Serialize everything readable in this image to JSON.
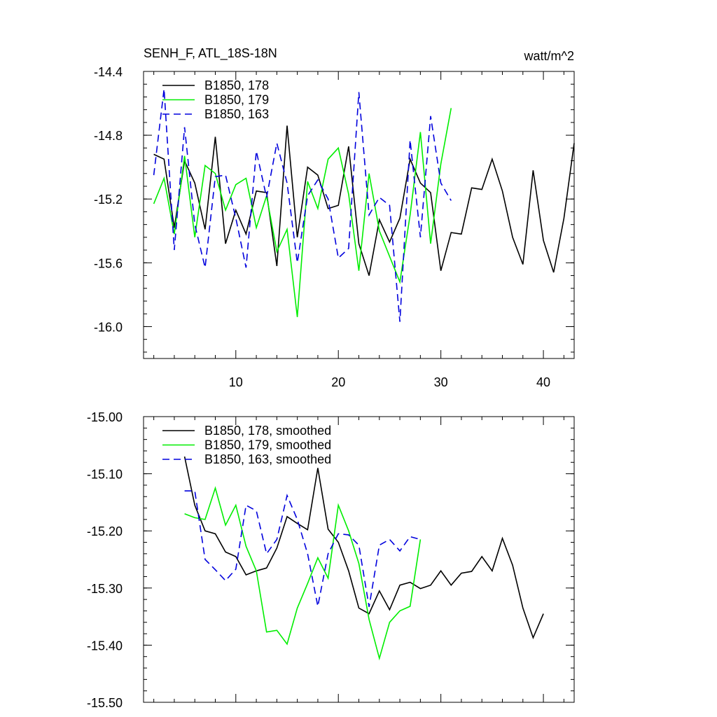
{
  "chart_data": [
    {
      "type": "line",
      "title": "SENH_F, ATL_18S-18N",
      "units": "watt/m^2",
      "xlabel": "",
      "ylabel": "",
      "xlim": [
        1,
        43
      ],
      "ylim": [
        -16.2,
        -14.4
      ],
      "xticks": [
        10,
        20,
        30,
        40
      ],
      "xtick_labels": [
        "10",
        "20",
        "30",
        "40"
      ],
      "yticks": [
        -14.4,
        -14.8,
        -15.2,
        -15.6,
        -16.0
      ],
      "ytick_labels": [
        "-14.4",
        "-14.8",
        "-15.2",
        "-15.6",
        "-16.0"
      ],
      "grid": false,
      "legend_position": "top-left",
      "series": [
        {
          "name": "B1850, 178",
          "color": "#000000",
          "dash": "solid",
          "x": [
            2,
            3,
            4,
            5,
            6,
            7,
            8,
            9,
            10,
            11,
            12,
            13,
            14,
            15,
            16,
            17,
            18,
            19,
            20,
            21,
            22,
            23,
            24,
            25,
            26,
            27,
            28,
            29,
            30,
            31,
            32,
            33,
            34,
            35,
            36,
            37,
            38,
            39,
            40,
            41,
            42,
            43
          ],
          "y": [
            -14.92,
            -14.95,
            -15.38,
            -14.96,
            -15.1,
            -15.39,
            -14.81,
            -15.48,
            -15.27,
            -15.42,
            -15.15,
            -15.16,
            -15.62,
            -14.74,
            -15.44,
            -15.0,
            -15.05,
            -15.26,
            -15.24,
            -14.87,
            -15.48,
            -15.68,
            -15.33,
            -15.47,
            -15.32,
            -14.95,
            -15.1,
            -15.16,
            -15.65,
            -15.41,
            -15.42,
            -15.13,
            -15.14,
            -14.95,
            -15.15,
            -15.44,
            -15.61,
            -15.02,
            -15.46,
            -15.66,
            -15.32,
            -14.85
          ]
        },
        {
          "name": "B1850, 179",
          "color": "#00ee00",
          "dash": "solid",
          "x": [
            2,
            3,
            4,
            5,
            6,
            7,
            8,
            9,
            10,
            11,
            12,
            13,
            14,
            15,
            16,
            17,
            18,
            19,
            20,
            21,
            22,
            23,
            24,
            25,
            26,
            27,
            28,
            29,
            30,
            31
          ],
          "y": [
            -15.23,
            -15.07,
            -15.42,
            -14.93,
            -15.44,
            -14.99,
            -15.04,
            -15.27,
            -15.11,
            -15.07,
            -15.38,
            -15.18,
            -15.53,
            -15.39,
            -15.94,
            -15.09,
            -15.26,
            -14.95,
            -14.88,
            -15.17,
            -15.65,
            -15.04,
            -15.4,
            -15.56,
            -15.72,
            -15.3,
            -14.78,
            -15.48,
            -14.98,
            -14.63
          ]
        },
        {
          "name": "B1850, 163",
          "color": "#0000dd",
          "dash": "dashed",
          "x": [
            2,
            3,
            4,
            5,
            6,
            7,
            8,
            9,
            10,
            11,
            12,
            13,
            14,
            15,
            16,
            17,
            18,
            19,
            20,
            21,
            22,
            23,
            24,
            25,
            26,
            27,
            28,
            29,
            30,
            31
          ],
          "y": [
            -15.05,
            -14.51,
            -15.52,
            -14.75,
            -15.36,
            -15.63,
            -15.06,
            -15.05,
            -15.32,
            -15.63,
            -14.9,
            -15.19,
            -14.85,
            -15.1,
            -15.6,
            -15.18,
            -15.08,
            -15.2,
            -15.57,
            -15.51,
            -14.53,
            -15.3,
            -15.19,
            -15.24,
            -15.97,
            -14.83,
            -15.44,
            -14.68,
            -15.1,
            -15.21
          ]
        }
      ]
    },
    {
      "type": "line",
      "title": "",
      "xlabel": "",
      "ylabel": "",
      "xlim": [
        1,
        43
      ],
      "ylim": [
        -15.5,
        -15.0
      ],
      "xticks": [
        10,
        20,
        30,
        40
      ],
      "xtick_labels": [],
      "yticks": [
        -15.0,
        -15.1,
        -15.2,
        -15.3,
        -15.4,
        -15.5
      ],
      "ytick_labels": [
        "-15.00",
        "-15.10",
        "-15.20",
        "-15.30",
        "-15.40",
        "-15.50"
      ],
      "grid": false,
      "legend_position": "top-left",
      "series": [
        {
          "name": "B1850, 178, smoothed",
          "color": "#000000",
          "dash": "solid",
          "x": [
            5,
            6,
            7,
            8,
            9,
            10,
            11,
            12,
            13,
            14,
            15,
            16,
            17,
            18,
            19,
            20,
            21,
            22,
            23,
            24,
            25,
            26,
            27,
            28,
            29,
            30,
            31,
            32,
            33,
            34,
            35,
            36,
            37,
            38,
            39,
            40
          ],
          "y": [
            -15.07,
            -15.155,
            -15.2,
            -15.205,
            -15.237,
            -15.245,
            -15.277,
            -15.27,
            -15.265,
            -15.23,
            -15.175,
            -15.187,
            -15.198,
            -15.09,
            -15.197,
            -15.22,
            -15.27,
            -15.335,
            -15.345,
            -15.305,
            -15.338,
            -15.295,
            -15.29,
            -15.301,
            -15.295,
            -15.27,
            -15.295,
            -15.274,
            -15.271,
            -15.245,
            -15.27,
            -15.213,
            -15.26,
            -15.335,
            -15.387,
            -15.345
          ]
        },
        {
          "name": "B1850, 179, smoothed",
          "color": "#00ee00",
          "dash": "solid",
          "x": [
            5,
            6,
            7,
            8,
            9,
            10,
            11,
            12,
            13,
            14,
            15,
            16,
            17,
            18,
            19,
            20,
            21,
            22,
            23,
            24,
            25,
            26,
            27,
            28
          ],
          "y": [
            -15.17,
            -15.177,
            -15.18,
            -15.125,
            -15.19,
            -15.155,
            -15.227,
            -15.27,
            -15.377,
            -15.374,
            -15.398,
            -15.335,
            -15.292,
            -15.247,
            -15.283,
            -15.155,
            -15.2,
            -15.257,
            -15.355,
            -15.423,
            -15.36,
            -15.34,
            -15.332,
            -15.215
          ]
        },
        {
          "name": "B1850, 163, smoothed",
          "color": "#0000dd",
          "dash": "dashed",
          "x": [
            5,
            6,
            7,
            8,
            9,
            10,
            11,
            12,
            13,
            14,
            15,
            16,
            17,
            18,
            19,
            20,
            21,
            22,
            23,
            24,
            25,
            26,
            27,
            28
          ],
          "y": [
            -15.13,
            -15.13,
            -15.25,
            -15.268,
            -15.287,
            -15.267,
            -15.155,
            -15.165,
            -15.24,
            -15.215,
            -15.138,
            -15.18,
            -15.24,
            -15.332,
            -15.24,
            -15.205,
            -15.207,
            -15.225,
            -15.333,
            -15.225,
            -15.215,
            -15.235,
            -15.21,
            -15.215
          ]
        }
      ]
    }
  ]
}
